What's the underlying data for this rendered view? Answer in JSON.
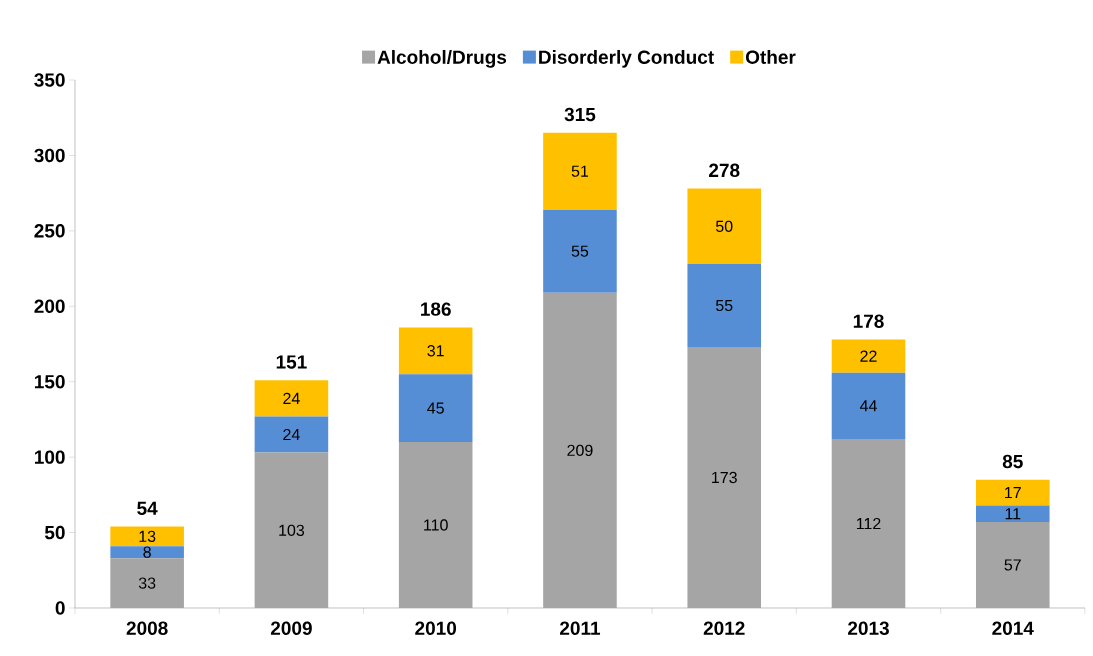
{
  "chart_data": {
    "type": "bar",
    "stacked": true,
    "categories": [
      "2008",
      "2009",
      "2010",
      "2011",
      "2012",
      "2013",
      "2014"
    ],
    "series": [
      {
        "name": "Alcohol/Drugs",
        "color": "#a5a5a5",
        "values": [
          33,
          103,
          110,
          209,
          173,
          112,
          57
        ]
      },
      {
        "name": "Disorderly Conduct",
        "color": "#558ed5",
        "values": [
          8,
          24,
          45,
          55,
          55,
          44,
          11
        ]
      },
      {
        "name": "Other",
        "color": "#ffc000",
        "values": [
          13,
          24,
          31,
          51,
          50,
          22,
          17
        ]
      }
    ],
    "totals": [
      "54",
      "151",
      "186",
      "315",
      "278",
      "178",
      "85"
    ],
    "data_labels": true,
    "legend": "top",
    "ylim": [
      0,
      350
    ],
    "yticks": [
      0,
      50,
      100,
      150,
      200,
      250,
      300,
      350
    ]
  }
}
